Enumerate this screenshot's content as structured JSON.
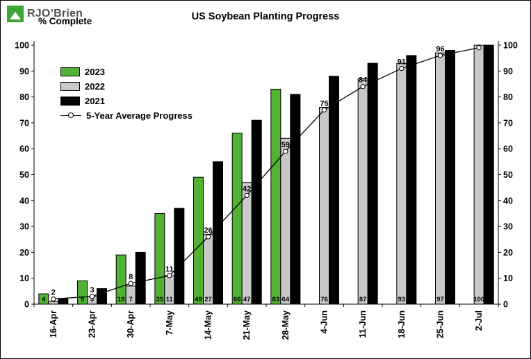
{
  "logo": {
    "text": "RJO’Brien",
    "color": "#3EA636"
  },
  "chart_data": {
    "type": "bar",
    "subtype": "grouped bars with 5-year average line overlay",
    "title": "US Soybean Planting Progress",
    "ylabel": "% Complete",
    "ylim": [
      0,
      100
    ],
    "y_tick_step": 10,
    "grid": false,
    "legend_position": "top-left inside plot",
    "categories": [
      "16-Apr",
      "23-Apr",
      "30-Apr",
      "7-May",
      "14-May",
      "21-May",
      "28-May",
      "4-Jun",
      "11-Jun",
      "18-Jun",
      "25-Jun",
      "2-Jul"
    ],
    "series": [
      {
        "name": "2023",
        "type": "bar",
        "color": "#53B234",
        "values": [
          4,
          9,
          19,
          35,
          49,
          66,
          83,
          null,
          null,
          null,
          null,
          null
        ]
      },
      {
        "name": "2022",
        "type": "bar",
        "color": "#C9C9C9",
        "values": [
          1,
          3,
          7,
          11,
          27,
          47,
          64,
          76,
          87,
          93,
          97,
          100
        ]
      },
      {
        "name": "2021",
        "type": "bar",
        "color": "#000000",
        "values": [
          2,
          6,
          20,
          37,
          55,
          71,
          81,
          88,
          93,
          96,
          98,
          100
        ]
      },
      {
        "name": "5-Year Average Progress",
        "type": "line",
        "color": "#000000",
        "marker": "open-circle",
        "values": [
          2,
          3,
          8,
          11,
          26,
          42,
          59,
          75,
          84,
          91,
          96,
          99
        ],
        "labeled_points": [
          2,
          3,
          8,
          11,
          26,
          42,
          59,
          75,
          84,
          91,
          96,
          null
        ]
      }
    ],
    "bar_value_labels": "2023 and 2022 values printed at base of bars; average values printed above line points"
  }
}
